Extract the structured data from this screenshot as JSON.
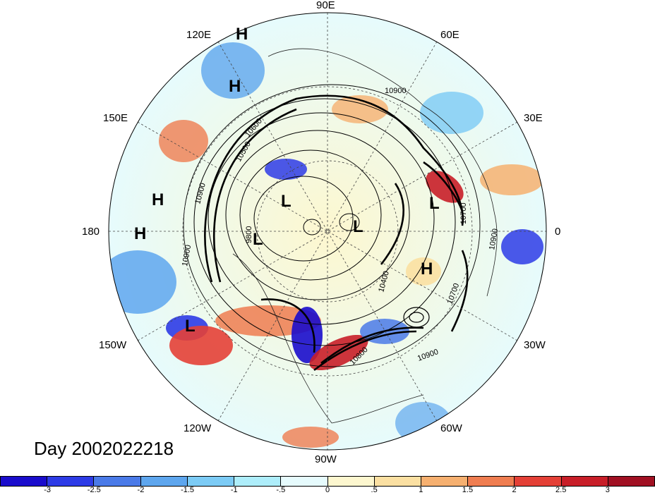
{
  "title": "Day 2002022218",
  "longitude_labels": [
    "90E",
    "60E",
    "30E",
    "0",
    "30W",
    "60W",
    "90W",
    "120W",
    "150W",
    "180",
    "150E",
    "120E"
  ],
  "pressure_systems": [
    {
      "label": "H",
      "id": "high-1"
    },
    {
      "label": "H",
      "id": "high-2"
    },
    {
      "label": "H",
      "id": "high-3"
    },
    {
      "label": "H",
      "id": "high-4"
    },
    {
      "label": "H",
      "id": "high-5"
    },
    {
      "label": "L",
      "id": "low-1"
    },
    {
      "label": "L",
      "id": "low-2"
    },
    {
      "label": "L",
      "id": "low-3"
    },
    {
      "label": "L",
      "id": "low-4"
    },
    {
      "label": "L",
      "id": "low-5"
    }
  ],
  "contour_labels": [
    "10900",
    "10900",
    "10900",
    "10900",
    "10900",
    "10800",
    "10700",
    "10700",
    "10400",
    "9800",
    "10600",
    "10500"
  ],
  "colorbar": {
    "ticks": [
      "-3",
      "-2.5",
      "-2",
      "-1.5",
      "-1",
      "-.5",
      "0",
      ".5",
      "1",
      "1.5",
      "2",
      "2.5",
      "3"
    ],
    "colors": [
      "#1a0ccc",
      "#2d3be6",
      "#4a7ae8",
      "#5ea6ee",
      "#7ccbf5",
      "#aeeefb",
      "#e6fbfd",
      "#fdf7cf",
      "#fbe0a2",
      "#f6b070",
      "#ef7d50",
      "#e44036",
      "#c81e28",
      "#a01022"
    ]
  }
}
